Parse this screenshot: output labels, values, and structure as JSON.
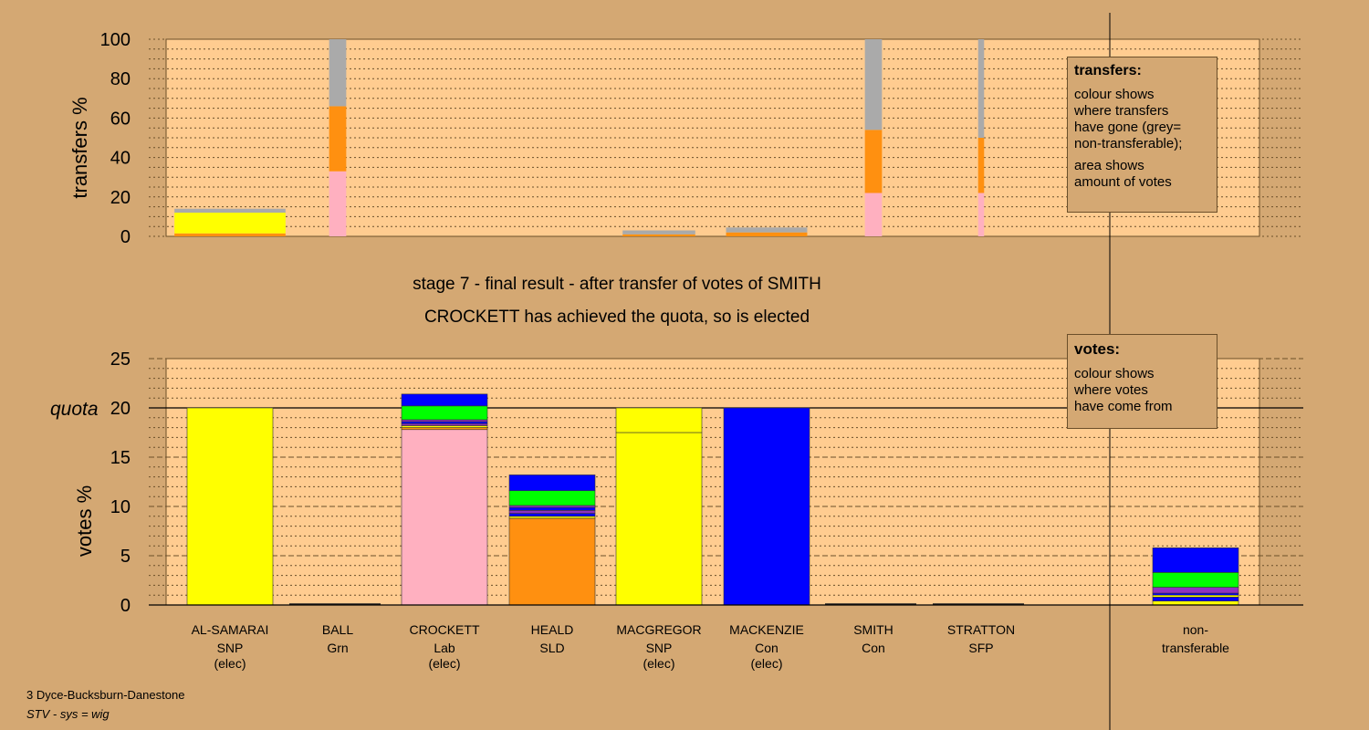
{
  "colors": {
    "background": "#d4a873",
    "plot_fill": "#ffcc90",
    "SNP": "#ffff00",
    "Grn": "#00ff00",
    "Lab": "#ffb0c0",
    "SLD": "#ff9010",
    "Con": "#0000ff",
    "SFP": "#9030c0",
    "non_transferable": "#aaaaaa"
  },
  "captions": {
    "stage": "stage 7 - final result - after transfer of votes of SMITH",
    "elected": "CROCKETT has achieved the quota, so is elected"
  },
  "legends": {
    "transfers": {
      "title": "transfers:",
      "line1": "colour shows",
      "line2": "where transfers",
      "line3": "have gone (grey=",
      "line4": "non-transferable);",
      "line5": "area shows",
      "line6": "amount of votes"
    },
    "votes": {
      "title": "votes:",
      "line1": "colour shows",
      "line2": "where votes",
      "line3": "have come from"
    }
  },
  "footer": {
    "ward": "3 Dyce-Bucksburn-Danestone",
    "system": "STV - sys = wig"
  },
  "chart_data": [
    {
      "type": "bar",
      "stacked": true,
      "ylabel": "transfers %",
      "ylim": [
        0,
        100
      ],
      "yticks": [
        0,
        20,
        40,
        60,
        80,
        100
      ],
      "grid": true,
      "legend_position": "top-right",
      "categories": [
        "AL-SAMARAI",
        "BALL",
        "CROCKETT",
        "HEALD",
        "MACGREGOR",
        "MACKENZIE",
        "SMITH",
        "STRATTON"
      ],
      "bars": [
        {
          "candidate": "AL-SAMARAI",
          "width_votes_pct": 13,
          "segments": [
            {
              "party": "SLD",
              "value": 1.5
            },
            {
              "party": "SNP",
              "value": 10.5
            },
            {
              "party": "non_transferable",
              "value": 2
            }
          ]
        },
        {
          "candidate": "BALL",
          "width_votes_pct": 2,
          "segments": [
            {
              "party": "Lab",
              "value": 33
            },
            {
              "party": "SLD",
              "value": 33
            },
            {
              "party": "non_transferable",
              "value": 34
            }
          ]
        },
        {
          "candidate": "CROCKETT",
          "width_votes_pct": 0,
          "segments": []
        },
        {
          "candidate": "HEALD",
          "width_votes_pct": 0,
          "segments": []
        },
        {
          "candidate": "MACGREGOR",
          "width_votes_pct": 8.5,
          "segments": [
            {
              "party": "SLD",
              "value": 1
            },
            {
              "party": "non_transferable",
              "value": 2
            }
          ]
        },
        {
          "candidate": "MACKENZIE",
          "width_votes_pct": 9.5,
          "segments": [
            {
              "party": "SLD",
              "value": 2
            },
            {
              "party": "non_transferable",
              "value": 2.5
            }
          ]
        },
        {
          "candidate": "SMITH",
          "width_votes_pct": 2,
          "segments": [
            {
              "party": "Lab",
              "value": 22
            },
            {
              "party": "SLD",
              "value": 32
            },
            {
              "party": "non_transferable",
              "value": 46
            }
          ]
        },
        {
          "candidate": "STRATTON",
          "width_votes_pct": 0.7,
          "segments": [
            {
              "party": "Lab",
              "value": 22
            },
            {
              "party": "SLD",
              "value": 28
            },
            {
              "party": "non_transferable",
              "value": 50
            }
          ]
        }
      ]
    },
    {
      "type": "bar",
      "stacked": true,
      "ylabel": "votes %",
      "ylim": [
        0,
        25
      ],
      "yticks": [
        0,
        5,
        10,
        15,
        20,
        25
      ],
      "quota": 20,
      "quota_label": "quota",
      "grid": true,
      "legend_position": "top-right",
      "categories": [
        {
          "name": "AL-SAMARAI",
          "party": "SNP",
          "status": "(elec)"
        },
        {
          "name": "BALL",
          "party": "Grn",
          "status": ""
        },
        {
          "name": "CROCKETT",
          "party": "Lab",
          "status": "(elec)"
        },
        {
          "name": "HEALD",
          "party": "SLD",
          "status": ""
        },
        {
          "name": "MACGREGOR",
          "party": "SNP",
          "status": "(elec)"
        },
        {
          "name": "MACKENZIE",
          "party": "Con",
          "status": "(elec)"
        },
        {
          "name": "SMITH",
          "party": "Con",
          "status": ""
        },
        {
          "name": "STRATTON",
          "party": "SFP",
          "status": ""
        },
        {
          "name": "non-",
          "party": "transferable",
          "status": ""
        }
      ],
      "bars": [
        {
          "candidate": "AL-SAMARAI",
          "segments": [
            {
              "party": "SNP",
              "value": 20
            }
          ]
        },
        {
          "candidate": "BALL",
          "segments": []
        },
        {
          "candidate": "CROCKETT",
          "segments": [
            {
              "party": "Lab",
              "value": 17.8
            },
            {
              "party": "SLD",
              "value": 0.2
            },
            {
              "party": "SNP",
              "value": 0.2
            },
            {
              "party": "SFP",
              "value": 0.2
            },
            {
              "party": "Con",
              "value": 0.2
            },
            {
              "party": "SFP",
              "value": 0.2
            },
            {
              "party": "Grn",
              "value": 1.4
            },
            {
              "party": "Con",
              "value": 1.2
            }
          ]
        },
        {
          "candidate": "HEALD",
          "segments": [
            {
              "party": "SLD",
              "value": 8.8
            },
            {
              "party": "SNP",
              "value": 0.2
            },
            {
              "party": "Con",
              "value": 0.3
            },
            {
              "party": "SFP",
              "value": 0.3
            },
            {
              "party": "Con",
              "value": 0.3
            },
            {
              "party": "SFP",
              "value": 0.2
            },
            {
              "party": "Grn",
              "value": 1.5
            },
            {
              "party": "Con",
              "value": 1.6
            }
          ]
        },
        {
          "candidate": "MACGREGOR",
          "segments": [
            {
              "party": "SNP",
              "value": 17.5
            },
            {
              "party": "SNP",
              "value": 2.5
            }
          ]
        },
        {
          "candidate": "MACKENZIE",
          "segments": [
            {
              "party": "Con",
              "value": 20
            }
          ]
        },
        {
          "candidate": "SMITH",
          "segments": []
        },
        {
          "candidate": "STRATTON",
          "segments": []
        },
        {
          "candidate": "non-transferable",
          "segments": [
            {
              "party": "SNP",
              "value": 0.4
            },
            {
              "party": "Con",
              "value": 0.4
            },
            {
              "party": "SNP",
              "value": 0.2
            },
            {
              "party": "Con",
              "value": 0.2
            },
            {
              "party": "SFP",
              "value": 0.6
            },
            {
              "party": "Grn",
              "value": 1.5
            },
            {
              "party": "Con",
              "value": 2.5
            }
          ]
        }
      ]
    }
  ]
}
